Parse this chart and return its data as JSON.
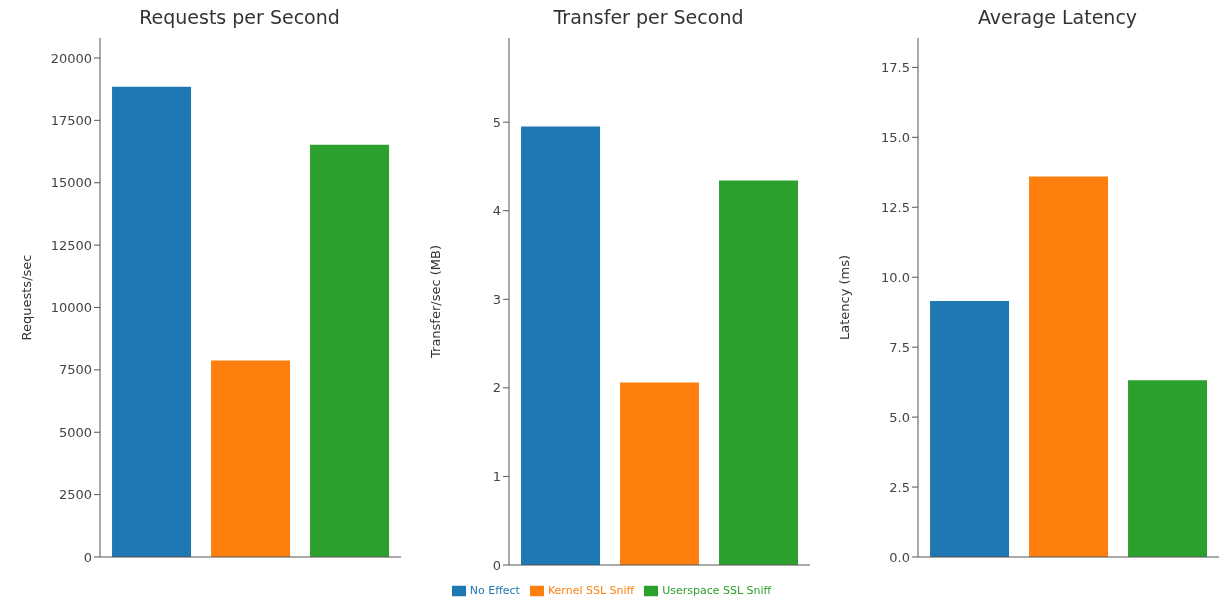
{
  "chart_data": [
    {
      "type": "bar",
      "title": "Requests per Second",
      "ylabel": "Requests/sec",
      "categories": [
        null
      ],
      "series": [
        {
          "color": "#1f77b4",
          "values": [
            18850
          ]
        },
        {
          "color": "#ff7f0e",
          "values": [
            7880
          ]
        },
        {
          "color": "#2ca02c",
          "values": [
            16520
          ]
        }
      ],
      "ylim": [
        0,
        20800
      ],
      "yticks": [
        0,
        2500,
        5000,
        7500,
        10000,
        12500,
        15000,
        17500,
        20000
      ],
      "grid": false,
      "legend": false
    },
    {
      "type": "bar",
      "title": "Transfer per Second",
      "ylabel": "Transfer/sec (MB)",
      "categories": [
        null
      ],
      "series": [
        {
          "name": "No Effect",
          "color": "#1f77b4",
          "values": [
            4.95
          ]
        },
        {
          "name": "Kernel SSL Sniff",
          "color": "#ff7f0e",
          "values": [
            2.06
          ]
        },
        {
          "name": "Userspace SSL Sniff",
          "color": "#2ca02c",
          "values": [
            4.34
          ]
        }
      ],
      "ylim": [
        0,
        5.95
      ],
      "yticks": [
        0,
        1,
        2,
        3,
        4,
        5
      ],
      "grid": false,
      "legend": "bottom"
    },
    {
      "type": "bar",
      "title": "Average Latency",
      "ylabel": "Latency (ms)",
      "categories": [
        null
      ],
      "series": [
        {
          "color": "#1f77b4",
          "values": [
            9.15
          ]
        },
        {
          "color": "#ff7f0e",
          "values": [
            13.6
          ]
        },
        {
          "color": "#2ca02c",
          "values": [
            6.32
          ]
        }
      ],
      "ylim": [
        0,
        18.55
      ],
      "yticks": [
        {
          "value": 0,
          "label": "0.0"
        },
        {
          "value": 2.5,
          "label": "2.5"
        },
        {
          "value": 5,
          "label": "5.0"
        },
        {
          "value": 7.5,
          "label": "7.5"
        },
        {
          "value": 10,
          "label": "10.0"
        },
        {
          "value": 12.5,
          "label": "12.5"
        },
        {
          "value": 15,
          "label": "15.0"
        },
        {
          "value": 17.5,
          "label": "17.5"
        }
      ],
      "grid": false,
      "legend": false
    }
  ]
}
